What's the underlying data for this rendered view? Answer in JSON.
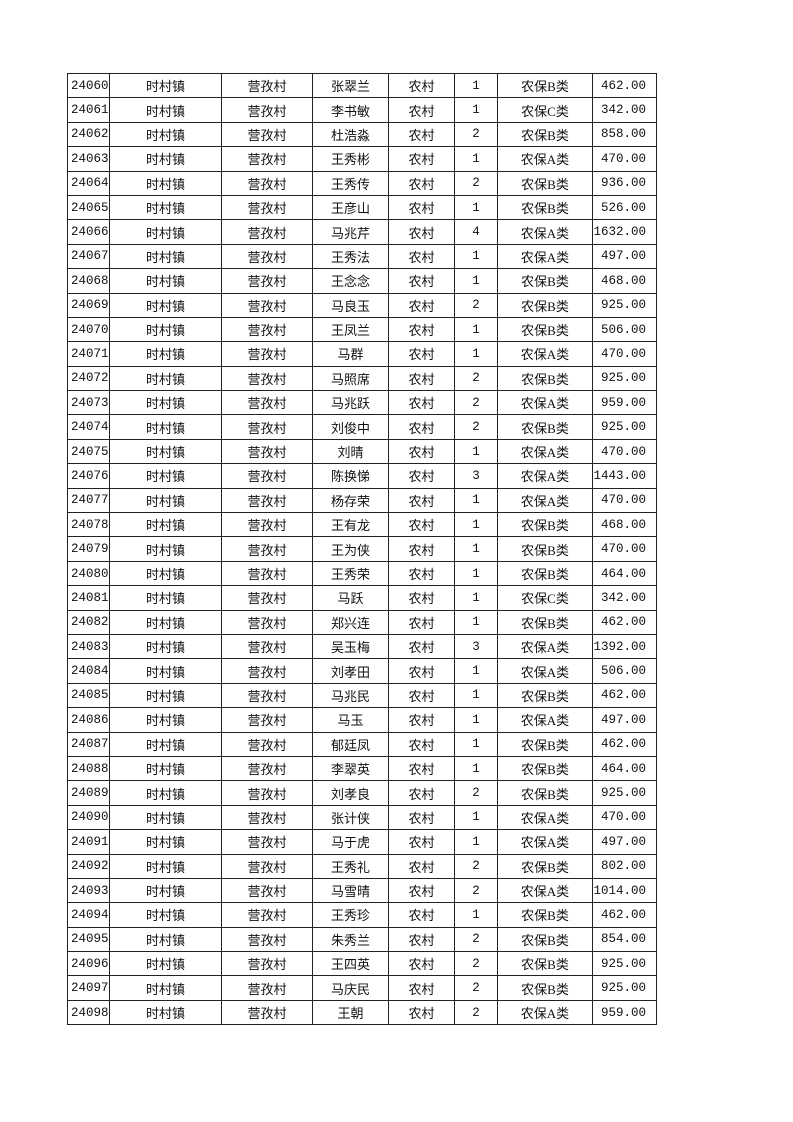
{
  "table": {
    "rows": [
      [
        "24060",
        "时村镇",
        "营孜村",
        "张翠兰",
        "农村",
        "1",
        "农保B类",
        "462.00"
      ],
      [
        "24061",
        "时村镇",
        "营孜村",
        "李书敏",
        "农村",
        "1",
        "农保C类",
        "342.00"
      ],
      [
        "24062",
        "时村镇",
        "营孜村",
        "杜浩淼",
        "农村",
        "2",
        "农保B类",
        "858.00"
      ],
      [
        "24063",
        "时村镇",
        "营孜村",
        "王秀彬",
        "农村",
        "1",
        "农保A类",
        "470.00"
      ],
      [
        "24064",
        "时村镇",
        "营孜村",
        "王秀传",
        "农村",
        "2",
        "农保B类",
        "936.00"
      ],
      [
        "24065",
        "时村镇",
        "营孜村",
        "王彦山",
        "农村",
        "1",
        "农保B类",
        "526.00"
      ],
      [
        "24066",
        "时村镇",
        "营孜村",
        "马兆芹",
        "农村",
        "4",
        "农保A类",
        "1632.00"
      ],
      [
        "24067",
        "时村镇",
        "营孜村",
        "王秀法",
        "农村",
        "1",
        "农保A类",
        "497.00"
      ],
      [
        "24068",
        "时村镇",
        "营孜村",
        "王念念",
        "农村",
        "1",
        "农保B类",
        "468.00"
      ],
      [
        "24069",
        "时村镇",
        "营孜村",
        "马良玉",
        "农村",
        "2",
        "农保B类",
        "925.00"
      ],
      [
        "24070",
        "时村镇",
        "营孜村",
        "王凤兰",
        "农村",
        "1",
        "农保B类",
        "506.00"
      ],
      [
        "24071",
        "时村镇",
        "营孜村",
        "马群",
        "农村",
        "1",
        "农保A类",
        "470.00"
      ],
      [
        "24072",
        "时村镇",
        "营孜村",
        "马照席",
        "农村",
        "2",
        "农保B类",
        "925.00"
      ],
      [
        "24073",
        "时村镇",
        "营孜村",
        "马兆跃",
        "农村",
        "2",
        "农保A类",
        "959.00"
      ],
      [
        "24074",
        "时村镇",
        "营孜村",
        "刘俊中",
        "农村",
        "2",
        "农保B类",
        "925.00"
      ],
      [
        "24075",
        "时村镇",
        "营孜村",
        "刘晴",
        "农村",
        "1",
        "农保A类",
        "470.00"
      ],
      [
        "24076",
        "时村镇",
        "营孜村",
        "陈换悌",
        "农村",
        "3",
        "农保A类",
        "1443.00"
      ],
      [
        "24077",
        "时村镇",
        "营孜村",
        "杨存荣",
        "农村",
        "1",
        "农保A类",
        "470.00"
      ],
      [
        "24078",
        "时村镇",
        "营孜村",
        "王有龙",
        "农村",
        "1",
        "农保B类",
        "468.00"
      ],
      [
        "24079",
        "时村镇",
        "营孜村",
        "王为侠",
        "农村",
        "1",
        "农保B类",
        "470.00"
      ],
      [
        "24080",
        "时村镇",
        "营孜村",
        "王秀荣",
        "农村",
        "1",
        "农保B类",
        "464.00"
      ],
      [
        "24081",
        "时村镇",
        "营孜村",
        "马跃",
        "农村",
        "1",
        "农保C类",
        "342.00"
      ],
      [
        "24082",
        "时村镇",
        "营孜村",
        "郑兴连",
        "农村",
        "1",
        "农保B类",
        "462.00"
      ],
      [
        "24083",
        "时村镇",
        "营孜村",
        "吴玉梅",
        "农村",
        "3",
        "农保A类",
        "1392.00"
      ],
      [
        "24084",
        "时村镇",
        "营孜村",
        "刘孝田",
        "农村",
        "1",
        "农保A类",
        "506.00"
      ],
      [
        "24085",
        "时村镇",
        "营孜村",
        "马兆民",
        "农村",
        "1",
        "农保B类",
        "462.00"
      ],
      [
        "24086",
        "时村镇",
        "营孜村",
        "马玉",
        "农村",
        "1",
        "农保A类",
        "497.00"
      ],
      [
        "24087",
        "时村镇",
        "营孜村",
        "郁廷凤",
        "农村",
        "1",
        "农保B类",
        "462.00"
      ],
      [
        "24088",
        "时村镇",
        "营孜村",
        "李翠英",
        "农村",
        "1",
        "农保B类",
        "464.00"
      ],
      [
        "24089",
        "时村镇",
        "营孜村",
        "刘孝良",
        "农村",
        "2",
        "农保B类",
        "925.00"
      ],
      [
        "24090",
        "时村镇",
        "营孜村",
        "张计侠",
        "农村",
        "1",
        "农保A类",
        "470.00"
      ],
      [
        "24091",
        "时村镇",
        "营孜村",
        "马于虎",
        "农村",
        "1",
        "农保A类",
        "497.00"
      ],
      [
        "24092",
        "时村镇",
        "营孜村",
        "王秀礼",
        "农村",
        "2",
        "农保B类",
        "802.00"
      ],
      [
        "24093",
        "时村镇",
        "营孜村",
        "马雪晴",
        "农村",
        "2",
        "农保A类",
        "1014.00"
      ],
      [
        "24094",
        "时村镇",
        "营孜村",
        "王秀珍",
        "农村",
        "1",
        "农保B类",
        "462.00"
      ],
      [
        "24095",
        "时村镇",
        "营孜村",
        "朱秀兰",
        "农村",
        "2",
        "农保B类",
        "854.00"
      ],
      [
        "24096",
        "时村镇",
        "营孜村",
        "王四英",
        "农村",
        "2",
        "农保B类",
        "925.00"
      ],
      [
        "24097",
        "时村镇",
        "营孜村",
        "马庆民",
        "农村",
        "2",
        "农保B类",
        "925.00"
      ],
      [
        "24098",
        "时村镇",
        "营孜村",
        "王朝",
        "农村",
        "2",
        "农保A类",
        "959.00"
      ]
    ]
  }
}
